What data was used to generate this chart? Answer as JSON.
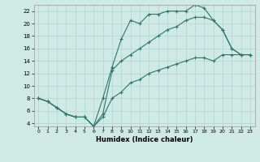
{
  "title": "",
  "xlabel": "Humidex (Indice chaleur)",
  "xlim": [
    -0.5,
    23.5
  ],
  "ylim": [
    3.5,
    23.0
  ],
  "yticks": [
    4,
    6,
    8,
    10,
    12,
    14,
    16,
    18,
    20,
    22
  ],
  "xticks": [
    0,
    1,
    2,
    3,
    4,
    5,
    6,
    7,
    8,
    9,
    10,
    11,
    12,
    13,
    14,
    15,
    16,
    17,
    18,
    19,
    20,
    21,
    22,
    23
  ],
  "bg_color": "#cfe9e5",
  "grid_color": "#b0d4cf",
  "line_color": "#2a7a65",
  "line1_x": [
    0,
    1,
    2,
    3,
    4,
    5,
    6,
    7,
    8,
    9,
    10,
    11,
    12,
    13,
    14,
    15,
    16,
    17,
    18,
    19,
    20,
    21,
    22,
    23
  ],
  "line1_y": [
    8,
    7.5,
    6.5,
    5.5,
    5.0,
    5.0,
    3.5,
    8.0,
    13.0,
    17.5,
    20.5,
    20.0,
    21.5,
    21.5,
    22.0,
    22.0,
    22.0,
    23.0,
    22.5,
    20.5,
    19.0,
    16.0,
    15.0,
    15.0
  ],
  "line2_x": [
    0,
    1,
    2,
    3,
    4,
    5,
    6,
    7,
    8,
    9,
    10,
    11,
    12,
    13,
    14,
    15,
    16,
    17,
    18,
    19,
    20,
    21,
    22,
    23
  ],
  "line2_y": [
    8,
    7.5,
    6.5,
    5.5,
    5.0,
    5.0,
    3.5,
    5.0,
    8.0,
    9.0,
    10.5,
    11.0,
    12.0,
    12.5,
    13.0,
    13.5,
    14.0,
    14.5,
    14.5,
    14.0,
    15.0,
    15.0,
    15.0,
    15.0
  ],
  "line3_x": [
    0,
    1,
    2,
    3,
    4,
    5,
    6,
    7,
    8,
    9,
    10,
    11,
    12,
    13,
    14,
    15,
    16,
    17,
    18,
    19,
    20,
    21,
    22,
    23
  ],
  "line3_y": [
    8,
    7.5,
    6.5,
    5.5,
    5.0,
    5.0,
    3.5,
    5.5,
    12.5,
    14.0,
    15.0,
    16.0,
    17.0,
    18.0,
    19.0,
    19.5,
    20.5,
    21.0,
    21.0,
    20.5,
    19.0,
    16.0,
    15.0,
    15.0
  ]
}
